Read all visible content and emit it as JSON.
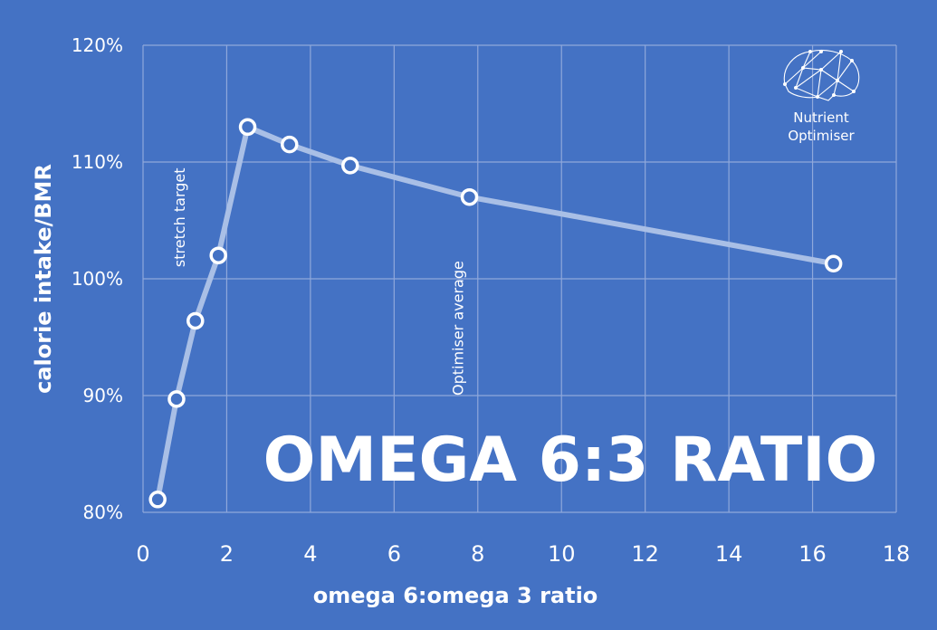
{
  "chart_data": {
    "type": "line",
    "title": "OMEGA 6:3 RATIO",
    "xlabel": "omega 6:omega 3 ratio",
    "ylabel": "calorie intake/BMR",
    "xlim": [
      0,
      18
    ],
    "ylim": [
      80,
      120
    ],
    "x_ticks": [
      0,
      2,
      4,
      6,
      8,
      10,
      12,
      14,
      16,
      18
    ],
    "y_ticks": [
      80,
      90,
      100,
      110,
      120
    ],
    "y_tick_suffix": "%",
    "grid": true,
    "series": [
      {
        "x": [
          0.35,
          0.8,
          1.25,
          1.8,
          2.5,
          3.5,
          4.95,
          7.8,
          16.5
        ],
        "y": [
          81.1,
          89.7,
          96.4,
          102.0,
          113.0,
          111.5,
          109.7,
          107.0,
          101.3
        ]
      }
    ],
    "annotations": [
      {
        "text": "stretch target",
        "x": 1.0,
        "y": 101
      },
      {
        "text": "Optimiser average",
        "x": 7.65,
        "y": 90
      }
    ],
    "colors": {
      "background": "#4472c4",
      "line": "#a9bfe6",
      "marker_fill": "#4472c4",
      "marker_stroke": "#ffffff",
      "grid": "#8fa8db"
    }
  },
  "logo": {
    "line1": "Nutrient",
    "line2": "Optimiser",
    "icon": "brain-network-icon"
  }
}
